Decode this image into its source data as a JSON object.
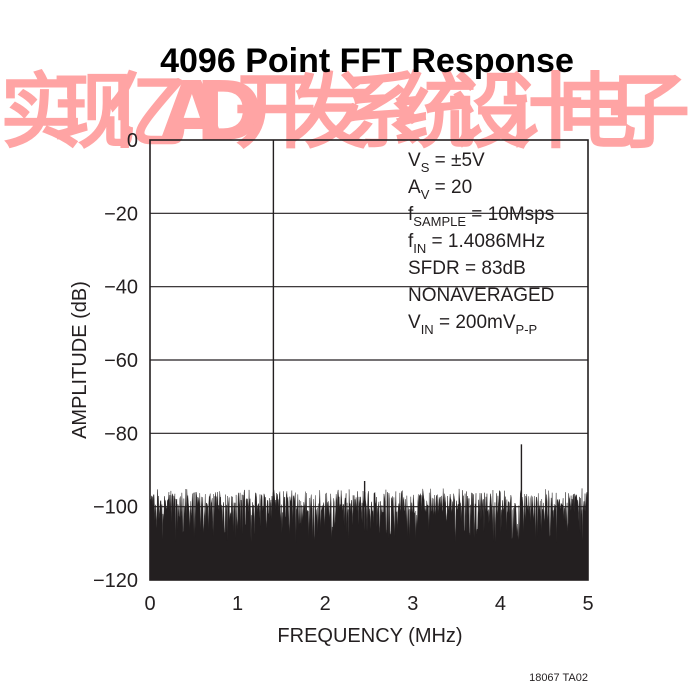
{
  "chart_data": {
    "type": "line",
    "title": "4096 Point FFT Response",
    "xlabel": "FREQUENCY (MHz)",
    "ylabel": "AMPLITUDE (dB)",
    "xlim": [
      0,
      5
    ],
    "ylim": [
      -120,
      0
    ],
    "x_ticks": [
      "0",
      "1",
      "2",
      "3",
      "4",
      "5"
    ],
    "y_ticks": [
      "0",
      "−20",
      "−40",
      "−60",
      "−80",
      "−100",
      "−120"
    ],
    "grid": "horizontal",
    "noise_floor_db": [
      -110,
      -95
    ],
    "series": [
      {
        "x": [
          1.4086,
          2.45,
          4.24
        ],
        "y": [
          0,
          -93,
          -83
        ]
      }
    ],
    "annotations": [
      {
        "main": "V",
        "sub": "S",
        "rest": " = ±5V"
      },
      {
        "main": "A",
        "sub": "V",
        "rest": " = 20"
      },
      {
        "main": "f",
        "sub": "SAMPLE",
        "rest": " = 10Msps"
      },
      {
        "main": "f",
        "sub": "IN",
        "rest": " = 1.4086MHz"
      },
      {
        "main": "SFDR = 83dB",
        "sub": "",
        "rest": ""
      },
      {
        "main": "NONAVERAGED",
        "sub": "",
        "rest": ""
      },
      {
        "main": "V",
        "sub": "IN",
        "rest": " = 200mV",
        "sub2": "P-P"
      }
    ],
    "figure_code": "18067 TA02",
    "watermark": "实现亿AD开发系统设计电子",
    "colors": {
      "ink": "#231f20",
      "watermark": "#ff5a5a"
    }
  }
}
